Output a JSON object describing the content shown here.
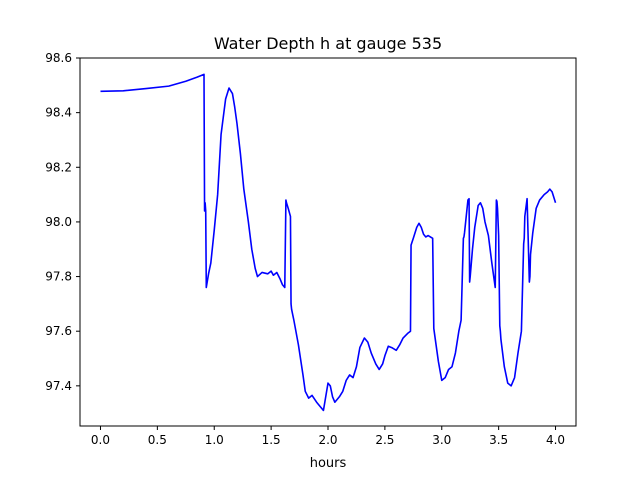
{
  "chart_data": {
    "type": "line",
    "title": "Water Depth h at gauge 535",
    "xlabel": "hours",
    "ylabel": "",
    "xlim": [
      -0.18,
      4.18
    ],
    "ylim": [
      97.253,
      98.6
    ],
    "xticks": [
      0.0,
      0.5,
      1.0,
      1.5,
      2.0,
      2.5,
      3.0,
      3.5,
      4.0
    ],
    "xtick_labels": [
      "0.0",
      "0.5",
      "1.0",
      "1.5",
      "2.0",
      "2.5",
      "3.0",
      "3.5",
      "4.0"
    ],
    "yticks": [
      97.4,
      97.6,
      97.8,
      98.0,
      98.2,
      98.4,
      98.6
    ],
    "ytick_labels": [
      "97.4",
      "97.6",
      "97.8",
      "98.0",
      "98.2",
      "98.4",
      "98.6"
    ],
    "grid": false,
    "series": [
      {
        "color": "#0000ff",
        "x": [
          0.0,
          0.2,
          0.4,
          0.6,
          0.65,
          0.75,
          0.85,
          0.91,
          0.915,
          0.92,
          0.925,
          0.93,
          0.95,
          0.97,
          1.0,
          1.03,
          1.06,
          1.1,
          1.13,
          1.16,
          1.18,
          1.2,
          1.23,
          1.26,
          1.3,
          1.33,
          1.36,
          1.38,
          1.42,
          1.47,
          1.5,
          1.52,
          1.55,
          1.58,
          1.6,
          1.62,
          1.63,
          1.635,
          1.65,
          1.67,
          1.675,
          1.68,
          1.7,
          1.74,
          1.78,
          1.8,
          1.83,
          1.86,
          1.9,
          1.93,
          1.96,
          1.98,
          2.0,
          2.02,
          2.04,
          2.06,
          2.08,
          2.1,
          2.13,
          2.16,
          2.19,
          2.22,
          2.25,
          2.28,
          2.32,
          2.35,
          2.38,
          2.42,
          2.45,
          2.48,
          2.5,
          2.53,
          2.56,
          2.6,
          2.63,
          2.66,
          2.7,
          2.725,
          2.73,
          2.75,
          2.78,
          2.8,
          2.82,
          2.84,
          2.86,
          2.88,
          2.9,
          2.92,
          2.93,
          2.95,
          2.97,
          3.0,
          3.03,
          3.06,
          3.09,
          3.12,
          3.15,
          3.17,
          3.19,
          3.195,
          3.2,
          3.21,
          3.23,
          3.24,
          3.245,
          3.25,
          3.27,
          3.29,
          3.32,
          3.34,
          3.36,
          3.38,
          3.41,
          3.44,
          3.47,
          3.48,
          3.485,
          3.49,
          3.5,
          3.51,
          3.515,
          3.52,
          3.55,
          3.58,
          3.61,
          3.64,
          3.67,
          3.7,
          3.72,
          3.725,
          3.73,
          3.75,
          3.77,
          3.775,
          3.78,
          3.8,
          3.83,
          3.86,
          3.9,
          3.93,
          3.95,
          3.97,
          4.0
        ],
        "y": [
          98.478,
          98.48,
          98.488,
          98.497,
          98.503,
          98.515,
          98.53,
          98.54,
          98.04,
          98.07,
          98.04,
          97.76,
          97.81,
          97.85,
          97.97,
          98.1,
          98.32,
          98.45,
          98.49,
          98.47,
          98.42,
          98.36,
          98.25,
          98.12,
          98.0,
          97.9,
          97.83,
          97.8,
          97.815,
          97.81,
          97.82,
          97.805,
          97.815,
          97.79,
          97.77,
          97.76,
          98.08,
          98.07,
          98.05,
          98.02,
          97.7,
          97.68,
          97.64,
          97.55,
          97.44,
          97.38,
          97.355,
          97.365,
          97.34,
          97.325,
          97.31,
          97.36,
          97.41,
          97.4,
          97.36,
          97.34,
          97.35,
          97.36,
          97.38,
          97.42,
          97.44,
          97.43,
          97.47,
          97.54,
          97.575,
          97.56,
          97.52,
          97.48,
          97.46,
          97.48,
          97.51,
          97.545,
          97.54,
          97.53,
          97.55,
          97.575,
          97.592,
          97.6,
          97.915,
          97.94,
          97.98,
          97.995,
          97.98,
          97.955,
          97.945,
          97.95,
          97.945,
          97.94,
          97.61,
          97.55,
          97.49,
          97.42,
          97.43,
          97.46,
          97.47,
          97.52,
          97.6,
          97.64,
          97.94,
          97.945,
          97.96,
          98.0,
          98.08,
          98.085,
          97.78,
          97.8,
          97.9,
          97.98,
          98.06,
          98.07,
          98.05,
          98.0,
          97.95,
          97.85,
          97.76,
          98.08,
          98.075,
          98.05,
          97.95,
          97.62,
          97.6,
          97.57,
          97.47,
          97.41,
          97.4,
          97.43,
          97.52,
          97.6,
          97.92,
          97.94,
          98.02,
          98.085,
          97.78,
          97.8,
          97.88,
          97.96,
          98.05,
          98.08,
          98.1,
          98.11,
          98.12,
          98.11,
          98.07
        ]
      }
    ]
  }
}
